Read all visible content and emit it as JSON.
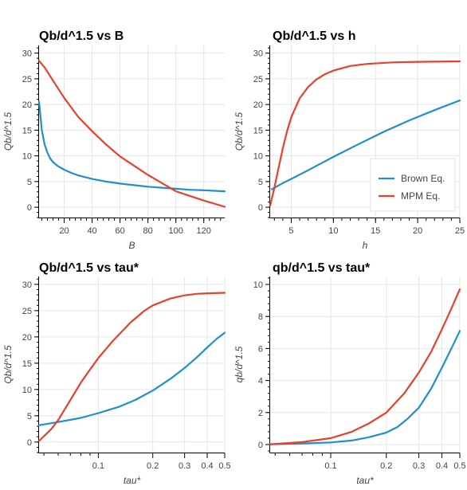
{
  "colors": {
    "brown": "#1f8fcf",
    "mpm": "#e8412b"
  },
  "legend": {
    "brown_label": "Brown Eq.",
    "mpm_label": "MPM Eq."
  },
  "chart_data": [
    {
      "type": "line",
      "title": "Qb/d^1.5 vs B",
      "xlabel": "B",
      "ylabel": "Qb/d^1.5",
      "x_scale": "linear",
      "xlim": [
        2,
        135
      ],
      "ylim": [
        -2,
        31.5
      ],
      "xticks": [
        20,
        40,
        60,
        80,
        100,
        120
      ],
      "xtick_labels": [
        "20",
        "40",
        "60",
        "80",
        "100",
        "120"
      ],
      "yticks": [
        0,
        5,
        10,
        15,
        20,
        25,
        30
      ],
      "ytick_labels": [
        "0",
        "5",
        "10",
        "15",
        "20",
        "25",
        "30"
      ],
      "grid": true,
      "series": [
        {
          "name": "Brown Eq.",
          "color_key": "brown",
          "x": [
            2,
            4,
            6,
            8,
            10,
            12,
            15,
            20,
            25,
            30,
            40,
            50,
            60,
            70,
            80,
            90,
            100,
            110,
            120,
            135
          ],
          "y": [
            20.5,
            15.0,
            12.2,
            10.6,
            9.5,
            8.8,
            8.1,
            7.3,
            6.7,
            6.2,
            5.5,
            5.0,
            4.6,
            4.3,
            4.0,
            3.8,
            3.6,
            3.4,
            3.3,
            3.1
          ]
        },
        {
          "name": "MPM Eq.",
          "color_key": "mpm",
          "x": [
            2,
            6,
            10,
            20,
            30,
            40,
            50,
            60,
            70,
            80,
            90,
            100,
            110,
            120,
            135
          ],
          "y": [
            28.5,
            27.2,
            25.5,
            21.3,
            17.6,
            14.8,
            12.2,
            9.9,
            8.1,
            6.3,
            4.7,
            3.1,
            2.2,
            1.3,
            0.1
          ]
        }
      ]
    },
    {
      "type": "line",
      "title": "Qb/d^1.5 vs h",
      "xlabel": "h",
      "ylabel": "Qb/d^1.5",
      "x_scale": "linear",
      "xlim": [
        2.5,
        25
      ],
      "ylim": [
        -2,
        31.5
      ],
      "xticks": [
        5,
        10,
        15,
        20,
        25
      ],
      "xtick_labels": [
        "5",
        "10",
        "15",
        "20",
        "25"
      ],
      "yticks": [
        0,
        5,
        10,
        15,
        20,
        25,
        30
      ],
      "ytick_labels": [
        "0",
        "5",
        "10",
        "15",
        "20",
        "25",
        "30"
      ],
      "grid": true,
      "legend_position": "bottom-right",
      "series": [
        {
          "name": "Brown Eq.",
          "color_key": "brown",
          "x": [
            2.7,
            4,
            5,
            7,
            10,
            13,
            16,
            19,
            22,
            25
          ],
          "y": [
            3.5,
            4.7,
            5.5,
            7.2,
            9.8,
            12.3,
            14.7,
            16.9,
            18.9,
            20.8
          ]
        },
        {
          "name": "MPM Eq.",
          "color_key": "mpm",
          "x": [
            2.5,
            3,
            3.5,
            4,
            4.5,
            5,
            6,
            7,
            8,
            9,
            10,
            12,
            14,
            17,
            20,
            25
          ],
          "y": [
            0.3,
            3.8,
            7.7,
            11.5,
            14.8,
            17.5,
            21.2,
            23.4,
            24.9,
            25.9,
            26.6,
            27.5,
            27.9,
            28.2,
            28.3,
            28.4
          ]
        }
      ]
    },
    {
      "type": "line",
      "title": "Qb/d^1.5 vs tau*",
      "xlabel": "tau*",
      "ylabel": "Qb/d^1.5",
      "x_scale": "log",
      "xlim": [
        0.047,
        0.5
      ],
      "ylim": [
        -2,
        31.5
      ],
      "xticks": [
        0.1,
        0.2,
        0.3,
        0.4,
        0.5
      ],
      "xtick_labels": [
        "0.1",
        "0.2",
        "0.3",
        "0.4",
        "0.5"
      ],
      "yticks": [
        0,
        5,
        10,
        15,
        20,
        25,
        30
      ],
      "ytick_labels": [
        "0",
        "5",
        "10",
        "15",
        "20",
        "25",
        "30"
      ],
      "grid": true,
      "series": [
        {
          "name": "Brown Eq.",
          "color_key": "brown",
          "x": [
            0.047,
            0.06,
            0.08,
            0.1,
            0.13,
            0.16,
            0.2,
            0.25,
            0.3,
            0.35,
            0.4,
            0.45,
            0.5
          ],
          "y": [
            3.2,
            3.8,
            4.6,
            5.5,
            6.7,
            8.0,
            9.8,
            12.0,
            14.1,
            16.1,
            18.0,
            19.6,
            20.8
          ]
        },
        {
          "name": "MPM Eq.",
          "color_key": "mpm",
          "x": [
            0.047,
            0.055,
            0.06,
            0.07,
            0.08,
            0.09,
            0.1,
            0.12,
            0.15,
            0.18,
            0.2,
            0.25,
            0.3,
            0.35,
            0.4,
            0.5
          ],
          "y": [
            0.2,
            2.5,
            4.2,
            8.0,
            11.3,
            13.8,
            16.0,
            19.2,
            22.7,
            25.0,
            26.0,
            27.3,
            27.9,
            28.2,
            28.3,
            28.4
          ]
        }
      ]
    },
    {
      "type": "line",
      "title": "qb/d^1.5 vs tau*",
      "xlabel": "tau*",
      "ylabel": "qb/d^1.5",
      "x_scale": "log",
      "xlim": [
        0.047,
        0.5
      ],
      "ylim": [
        -0.5,
        10.5
      ],
      "xticks": [
        0.1,
        0.2,
        0.3,
        0.4,
        0.5
      ],
      "xtick_labels": [
        "0.1",
        "0.2",
        "0.3",
        "0.4",
        "0.5"
      ],
      "yticks": [
        0,
        2,
        4,
        6,
        8,
        10
      ],
      "ytick_labels": [
        "0",
        "2",
        "4",
        "6",
        "8",
        "10"
      ],
      "grid": true,
      "series": [
        {
          "name": "Brown Eq.",
          "color_key": "brown",
          "x": [
            0.047,
            0.07,
            0.1,
            0.13,
            0.16,
            0.2,
            0.23,
            0.26,
            0.3,
            0.35,
            0.4,
            0.45,
            0.5
          ],
          "y": [
            0.02,
            0.06,
            0.13,
            0.25,
            0.45,
            0.75,
            1.1,
            1.6,
            2.3,
            3.5,
            4.8,
            6.0,
            7.1
          ]
        },
        {
          "name": "MPM Eq.",
          "color_key": "mpm",
          "x": [
            0.047,
            0.07,
            0.1,
            0.13,
            0.16,
            0.2,
            0.25,
            0.3,
            0.35,
            0.4,
            0.45,
            0.5
          ],
          "y": [
            0.02,
            0.15,
            0.4,
            0.8,
            1.3,
            2.0,
            3.2,
            4.5,
            5.8,
            7.2,
            8.5,
            9.7
          ]
        }
      ]
    }
  ]
}
